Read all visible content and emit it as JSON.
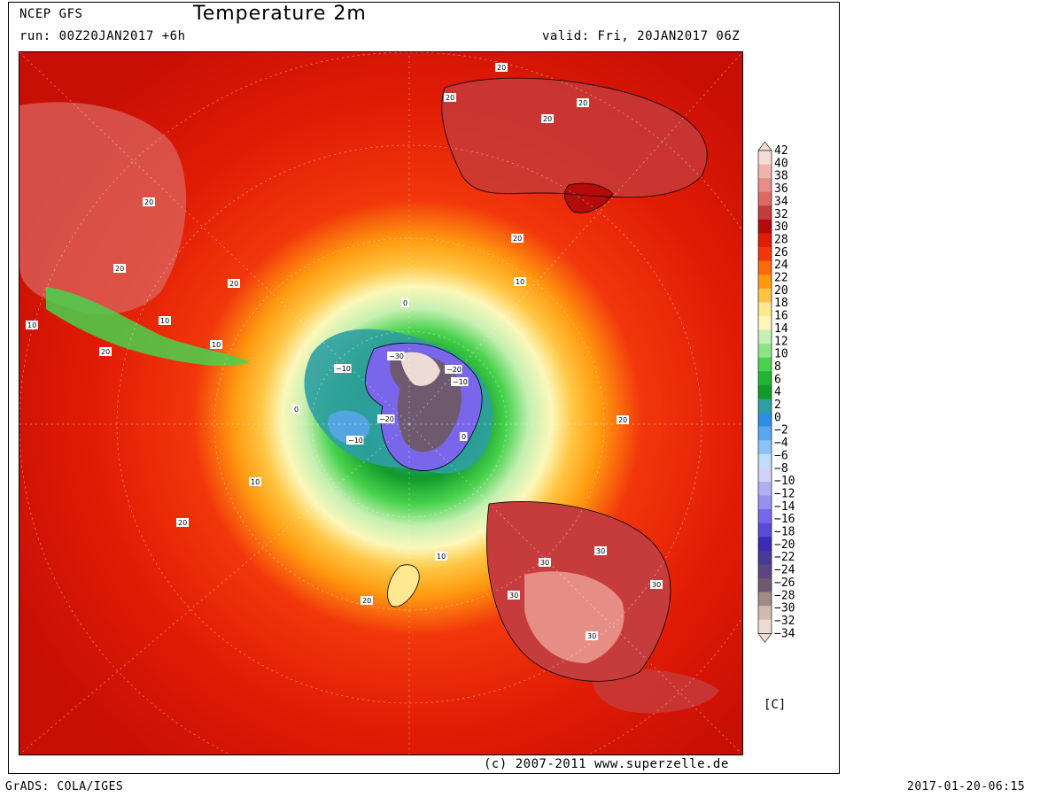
{
  "header": {
    "model": "NCEP GFS",
    "title": "Temperature 2m",
    "run": "run: 00Z20JAN2017 +6h",
    "valid": "valid: Fri, 20JAN2017 06Z"
  },
  "footer": {
    "copyright": "(c) 2007-2011 www.superzelle.de",
    "software": "GrADS: COLA/IGES",
    "timestamp": "2017-01-20-06:15"
  },
  "unit_label": "[C]",
  "colorbar": {
    "labels": [
      "42",
      "40",
      "38",
      "36",
      "34",
      "32",
      "30",
      "28",
      "26",
      "24",
      "22",
      "20",
      "18",
      "16",
      "14",
      "12",
      "10",
      "8",
      "6",
      "4",
      "2",
      "0",
      "-2",
      "-4",
      "-6",
      "-8",
      "-10",
      "-12",
      "-14",
      "-16",
      "-18",
      "-20",
      "-22",
      "-24",
      "-26",
      "-28",
      "-30",
      "-32",
      "-34"
    ],
    "colors": [
      "#f7dcd6",
      "#efb4ac",
      "#e68e86",
      "#dc6964",
      "#c63c3c",
      "#b40a0a",
      "#e11c05",
      "#f2370b",
      "#ff6a0a",
      "#ff9a10",
      "#ffc542",
      "#ffe88f",
      "#fcf8bb",
      "#c5f0b2",
      "#8ee589",
      "#48d24d",
      "#20b432",
      "#129a2a",
      "#2f9fa2",
      "#2f8ee3",
      "#5aa6ef",
      "#8cc2f5",
      "#bfdcfb",
      "#d2d2f8",
      "#b4aef1",
      "#9a8ef0",
      "#7a66ea",
      "#5a4ad8",
      "#3a2ab4",
      "#463a96",
      "#5a4680",
      "#6e5a6e",
      "#a08c84",
      "#d2b9ad",
      "#eddcd6"
    ]
  },
  "contour_labels": [
    {
      "text": "20"
    },
    {
      "text": "20"
    },
    {
      "text": "20"
    },
    {
      "text": "20"
    },
    {
      "text": "20"
    },
    {
      "text": "20"
    },
    {
      "text": "20"
    },
    {
      "text": "20"
    },
    {
      "text": "20"
    },
    {
      "text": "20"
    },
    {
      "text": "20"
    },
    {
      "text": "20"
    },
    {
      "text": "10"
    },
    {
      "text": "10"
    },
    {
      "text": "10"
    },
    {
      "text": "10"
    },
    {
      "text": "10"
    },
    {
      "text": "10"
    },
    {
      "text": "0"
    },
    {
      "text": "0"
    },
    {
      "text": "0"
    },
    {
      "text": "-10"
    },
    {
      "text": "-10"
    },
    {
      "text": "-10"
    },
    {
      "text": "-20"
    },
    {
      "text": "-20"
    },
    {
      "text": "-30"
    },
    {
      "text": "30"
    },
    {
      "text": "30"
    },
    {
      "text": "30"
    },
    {
      "text": "30"
    },
    {
      "text": "30"
    }
  ]
}
